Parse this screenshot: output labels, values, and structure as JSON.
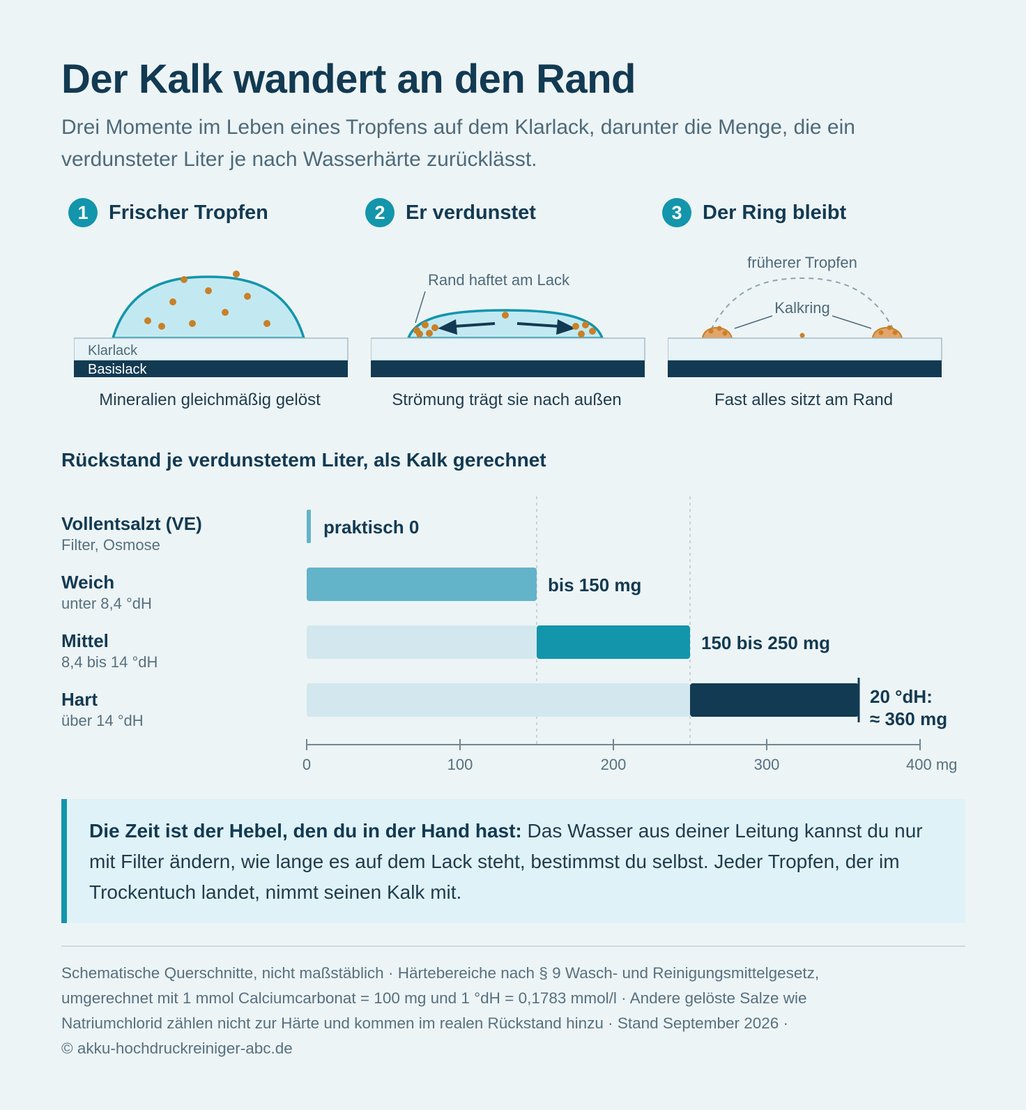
{
  "title": "Der Kalk wandert an den Rand",
  "subtitle": "Drei Momente im Leben eines Tropfens auf dem Klarlack, darunter die Menge, die ein verdunsteter Liter je nach Wasserhärte zurücklässt.",
  "steps": [
    {
      "number": "1",
      "title": "Frischer Tropfen",
      "caption": "Mineralien gleichmäßig gelöst",
      "layer_top": "Klarlack",
      "layer_bottom": "Basislack"
    },
    {
      "number": "2",
      "title": "Er verdunstet",
      "caption": "Strömung trägt sie nach außen",
      "annotation": "Rand haftet am Lack"
    },
    {
      "number": "3",
      "title": "Der Ring bleibt",
      "caption": "Fast alles sitzt am Rand",
      "annotation_top": "früherer Tropfen",
      "annotation_ring": "Kalkring"
    }
  ],
  "colors": {
    "dark": "#123a52",
    "accent": "#1395ab",
    "soft": "#63b3c9",
    "pale": "#d2e8ee",
    "mineral": "#c98028",
    "water": "#c2e9f2",
    "background": "#edf4f6"
  },
  "chart_heading": "Rückstand je verdunstetem Liter, als Kalk gerechnet",
  "rows": [
    {
      "name": "Vollentsalzt (VE)",
      "range": "Filter, Osmose"
    },
    {
      "name": "Weich",
      "range": "unter 8,4 °dH"
    },
    {
      "name": "Mittel",
      "range": "8,4 bis 14 °dH"
    },
    {
      "name": "Hart",
      "range": "über 14 °dH"
    }
  ],
  "chart_data": {
    "type": "bar",
    "orientation": "horizontal",
    "title": "Rückstand je verdunstetem Liter, als Kalk gerechnet",
    "categories": [
      "Vollentsalzt (VE)",
      "Weich",
      "Mittel",
      "Hart"
    ],
    "bars": [
      {
        "category": "Vollentsalzt (VE)",
        "start": 0,
        "end": 0,
        "label": "praktisch 0"
      },
      {
        "category": "Weich",
        "start": 0,
        "end": 150,
        "label": "bis 150 mg"
      },
      {
        "category": "Mittel",
        "start": 150,
        "end": 250,
        "label": "150 bis 250 mg"
      },
      {
        "category": "Hart",
        "start": 250,
        "end": 360,
        "label_line1": "20 °dH:",
        "label_line2": "≈ 360 mg"
      }
    ],
    "reference_lines": [
      150,
      250
    ],
    "xlim": [
      0,
      400
    ],
    "xticks": [
      "0",
      "100",
      "200",
      "300",
      "400 mg"
    ],
    "xtick_values": [
      0,
      100,
      200,
      300,
      400
    ],
    "grid": false
  },
  "note": {
    "bold": "Die Zeit ist der Hebel, den du in der Hand hast:",
    "text": " Das Wasser aus deiner Leitung kannst du nur mit Filter ändern, wie lange es auf dem Lack steht, bestimmst du selbst. Jeder Tropfen, der im Trockentuch landet, nimmt seinen Kalk mit."
  },
  "footer": {
    "line1": "Schematische Querschnitte, nicht maßstäblich · Härtebereiche nach § 9 Wasch- und Reinigungsmittelgesetz,",
    "line2": "umgerechnet mit 1 mmol Calciumcarbonat = 100 mg und 1 °dH = 0,1783 mmol/l · Andere gelöste Salze wie",
    "line3": "Natriumchlorid zählen nicht zur Härte und kommen im realen Rückstand hinzu · Stand September 2026 ·",
    "line4": "© akku-hochdruckreiniger-abc.de"
  }
}
